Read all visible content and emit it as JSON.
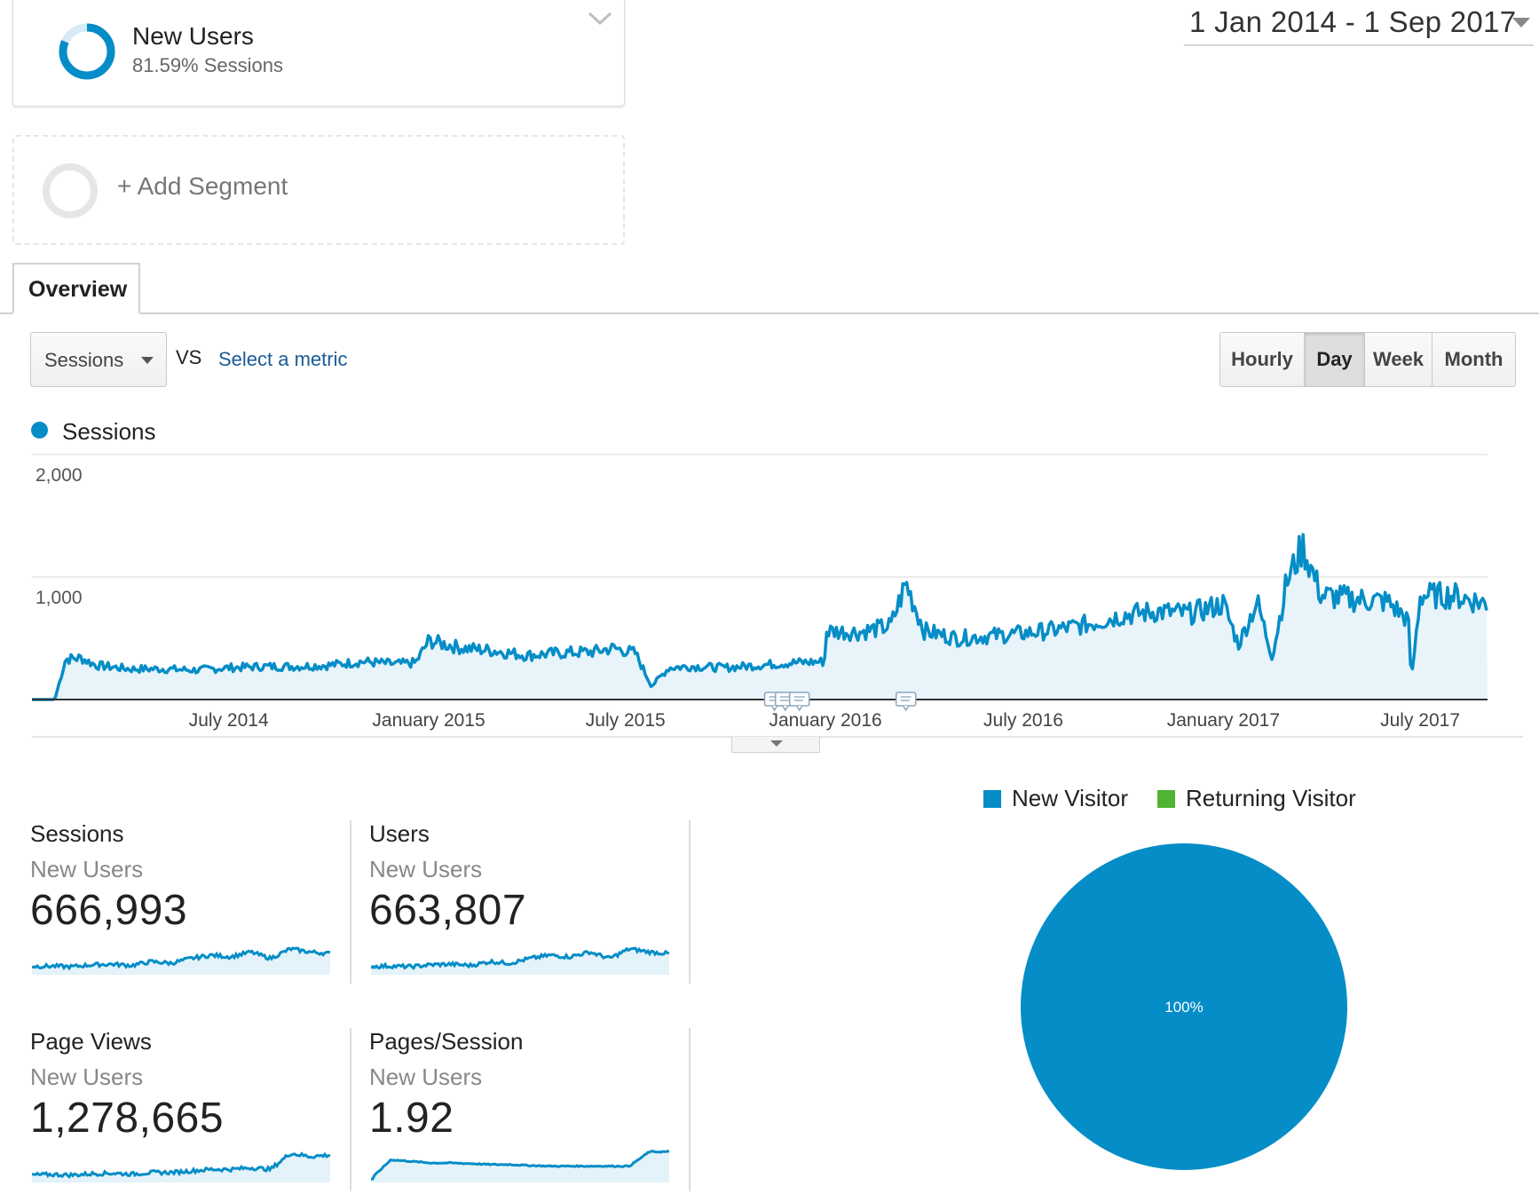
{
  "segment": {
    "title": "New Users",
    "subtitle": "81.59% Sessions",
    "percent": 81.59,
    "ring_color": "#058dc7",
    "ring_bg_color": "#d6ebf5"
  },
  "add_segment": {
    "label": "+ Add Segment"
  },
  "date_range": {
    "label": "1 Jan 2014 - 1 Sep 2017"
  },
  "tabs": [
    {
      "label": "Overview",
      "active": true
    }
  ],
  "metric": {
    "selected": "Sessions",
    "vs_label": "VS",
    "select_metric_label": "Select a metric"
  },
  "granularity": {
    "options": [
      "Hourly",
      "Day",
      "Week",
      "Month"
    ],
    "active": "Day"
  },
  "legend": {
    "series": "Sessions",
    "color": "#058dc7"
  },
  "chart_data": {
    "type": "area",
    "title": "",
    "xlabel": "",
    "ylabel": "",
    "series": [
      {
        "name": "Sessions",
        "color": "#058dc7",
        "x": [
          "2014-01-01",
          "2014-01-22",
          "2014-02-01",
          "2014-02-15",
          "2014-03-01",
          "2014-04-01",
          "2014-05-01",
          "2014-06-01",
          "2014-07-01",
          "2014-08-01",
          "2014-09-01",
          "2014-10-01",
          "2014-11-01",
          "2014-12-01",
          "2014-12-20",
          "2015-01-01",
          "2015-02-01",
          "2015-03-01",
          "2015-04-01",
          "2015-05-01",
          "2015-06-01",
          "2015-06-20",
          "2015-07-10",
          "2015-07-25",
          "2015-08-10",
          "2015-09-01",
          "2015-10-01",
          "2015-11-01",
          "2015-12-01",
          "2015-12-31",
          "2016-01-02",
          "2016-02-01",
          "2016-03-01",
          "2016-03-15",
          "2016-04-01",
          "2016-05-01",
          "2016-06-01",
          "2016-07-01",
          "2016-08-01",
          "2016-09-01",
          "2016-10-01",
          "2016-11-01",
          "2016-12-01",
          "2017-01-01",
          "2017-01-15",
          "2017-02-01",
          "2017-02-15",
          "2017-02-28",
          "2017-03-15",
          "2017-04-01",
          "2017-05-01",
          "2017-06-01",
          "2017-06-20",
          "2017-06-23",
          "2017-07-01",
          "2017-08-01",
          "2017-09-01"
        ],
        "values": [
          0,
          0,
          330,
          340,
          280,
          250,
          250,
          240,
          260,
          270,
          270,
          280,
          310,
          290,
          300,
          480,
          420,
          400,
          360,
          380,
          390,
          420,
          380,
          110,
          260,
          270,
          260,
          280,
          300,
          310,
          560,
          550,
          600,
          950,
          560,
          500,
          520,
          540,
          570,
          620,
          690,
          720,
          700,
          780,
          450,
          800,
          350,
          950,
          1250,
          850,
          820,
          800,
          650,
          150,
          850,
          850,
          780
        ]
      }
    ],
    "y_ticks": [
      "2,000",
      "1,000"
    ],
    "ylim": [
      0,
      2000
    ],
    "x_tick_labels": [
      "July 2014",
      "January 2015",
      "July 2015",
      "January 2016",
      "July 2016",
      "January 2017",
      "July 2017"
    ],
    "x_tick_dates": [
      "2014-07-01",
      "2015-01-01",
      "2015-07-01",
      "2016-01-01",
      "2016-07-01",
      "2017-01-01",
      "2017-07-01"
    ],
    "x_range": [
      "2014-01-01",
      "2017-09-01"
    ],
    "annotation_dates": [
      "2015-11-15",
      "2015-11-25",
      "2015-12-08",
      "2016-03-15"
    ],
    "grid": true
  },
  "scorecards": [
    {
      "title": "Sessions",
      "segment": "New Users",
      "value": "666,993",
      "spark": "sessions"
    },
    {
      "title": "Users",
      "segment": "New Users",
      "value": "663,807",
      "spark": "users"
    },
    {
      "title": "Page Views",
      "segment": "New Users",
      "value": "1,278,665",
      "spark": "pageviews"
    },
    {
      "title": "Pages/Session",
      "segment": "New Users",
      "value": "1.92",
      "spark": "pps"
    }
  ],
  "pie": {
    "legend": [
      {
        "label": "New Visitor",
        "color": "#058dc7"
      },
      {
        "label": "Returning Visitor",
        "color": "#50b432"
      }
    ],
    "chart_data": {
      "type": "pie",
      "labels": [
        "New Visitor",
        "Returning Visitor"
      ],
      "values": [
        100,
        0
      ],
      "slice_label": "100%"
    }
  }
}
